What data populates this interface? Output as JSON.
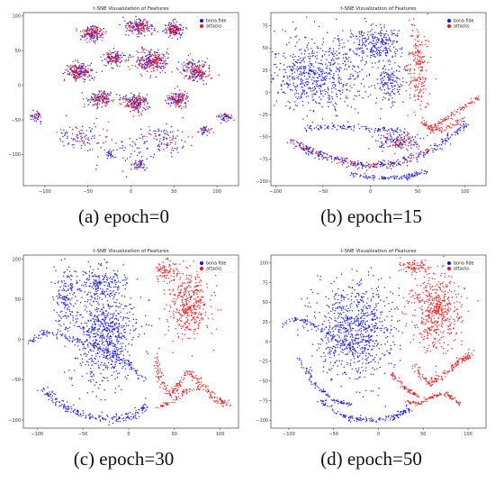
{
  "colors": {
    "bona_fide": "#1010ee",
    "attacks": "#ee1010"
  },
  "chart_data": [
    {
      "type": "scatter",
      "title": "t-SNE Visualization of Features",
      "caption": "(a) epoch=0",
      "xlim": [
        -125,
        125
      ],
      "ylim": [
        -145,
        105
      ],
      "xticks": [
        -100,
        -50,
        0,
        50,
        100
      ],
      "yticks": [
        -100,
        -50,
        0,
        50,
        100
      ],
      "legend": {
        "placement": "top-right",
        "entries": [
          "bona fide",
          "attacks"
        ]
      },
      "series": [
        {
          "name": "bona fide",
          "color": "#1010ee",
          "clusters": [
            {
              "cx": -45,
              "cy": 75,
              "rx": 12,
              "ry": 10,
              "n": 90
            },
            {
              "cx": 10,
              "cy": 85,
              "rx": 14,
              "ry": 10,
              "n": 100
            },
            {
              "cx": 50,
              "cy": 80,
              "rx": 10,
              "ry": 10,
              "n": 80
            },
            {
              "cx": -60,
              "cy": 20,
              "rx": 15,
              "ry": 12,
              "n": 110
            },
            {
              "cx": -20,
              "cy": 40,
              "rx": 10,
              "ry": 10,
              "n": 70
            },
            {
              "cx": 25,
              "cy": 35,
              "rx": 18,
              "ry": 14,
              "n": 140
            },
            {
              "cx": 75,
              "cy": 20,
              "rx": 15,
              "ry": 14,
              "n": 110
            },
            {
              "cx": -35,
              "cy": -20,
              "rx": 12,
              "ry": 10,
              "n": 80
            },
            {
              "cx": 5,
              "cy": -25,
              "rx": 14,
              "ry": 12,
              "n": 100
            },
            {
              "cx": 55,
              "cy": -20,
              "rx": 12,
              "ry": 10,
              "n": 80
            },
            {
              "cx": -110,
              "cy": -45,
              "rx": 7,
              "ry": 7,
              "n": 30
            },
            {
              "cx": 110,
              "cy": -45,
              "rx": 8,
              "ry": 7,
              "n": 35
            },
            {
              "cx": 85,
              "cy": -65,
              "rx": 8,
              "ry": 6,
              "n": 30
            },
            {
              "cx": 10,
              "cy": -115,
              "rx": 8,
              "ry": 7,
              "n": 35
            },
            {
              "cx": -25,
              "cy": -100,
              "rx": 6,
              "ry": 6,
              "n": 20
            },
            {
              "cx": -60,
              "cy": -75,
              "rx": 22,
              "ry": 18,
              "n": 60
            },
            {
              "cx": 40,
              "cy": -80,
              "rx": 25,
              "ry": 20,
              "n": 60
            },
            {
              "cx": 0,
              "cy": -90,
              "rx": 60,
              "ry": 30,
              "n": 80
            }
          ]
        },
        {
          "name": "attacks",
          "color": "#ee1010",
          "clusters": [
            {
              "cx": -45,
              "cy": 75,
              "rx": 12,
              "ry": 10,
              "n": 80
            },
            {
              "cx": 10,
              "cy": 85,
              "rx": 14,
              "ry": 10,
              "n": 90
            },
            {
              "cx": 50,
              "cy": 80,
              "rx": 10,
              "ry": 10,
              "n": 70
            },
            {
              "cx": -60,
              "cy": 20,
              "rx": 15,
              "ry": 12,
              "n": 100
            },
            {
              "cx": -20,
              "cy": 40,
              "rx": 10,
              "ry": 10,
              "n": 60
            },
            {
              "cx": 25,
              "cy": 35,
              "rx": 18,
              "ry": 14,
              "n": 130
            },
            {
              "cx": 75,
              "cy": 20,
              "rx": 15,
              "ry": 14,
              "n": 100
            },
            {
              "cx": -35,
              "cy": -20,
              "rx": 12,
              "ry": 10,
              "n": 70
            },
            {
              "cx": 5,
              "cy": -25,
              "rx": 14,
              "ry": 12,
              "n": 90
            },
            {
              "cx": 55,
              "cy": -20,
              "rx": 12,
              "ry": 10,
              "n": 70
            },
            {
              "cx": -110,
              "cy": -45,
              "rx": 7,
              "ry": 7,
              "n": 12
            },
            {
              "cx": 110,
              "cy": -45,
              "rx": 8,
              "ry": 7,
              "n": 14
            },
            {
              "cx": 85,
              "cy": -65,
              "rx": 8,
              "ry": 6,
              "n": 10
            },
            {
              "cx": 10,
              "cy": -115,
              "rx": 8,
              "ry": 7,
              "n": 12
            },
            {
              "cx": -60,
              "cy": -75,
              "rx": 22,
              "ry": 18,
              "n": 25
            },
            {
              "cx": 40,
              "cy": -80,
              "rx": 25,
              "ry": 20,
              "n": 25
            }
          ]
        }
      ]
    },
    {
      "type": "scatter",
      "title": "t-SNE Visualization of Features",
      "caption": "(b) epoch=15",
      "xlim": [
        -105,
        122
      ],
      "ylim": [
        -105,
        90
      ],
      "xticks": [
        -100,
        -50,
        0,
        50,
        100
      ],
      "yticks": [
        -100,
        -75,
        -50,
        -25,
        0,
        25,
        50,
        75
      ],
      "legend": {
        "placement": "top-right",
        "entries": [
          "bona fide",
          "attacks"
        ]
      },
      "series": [
        {
          "name": "bona fide",
          "color": "#1010ee",
          "clusters": [
            {
              "cx": -55,
              "cy": 20,
              "rx": 45,
              "ry": 40,
              "n": 650
            },
            {
              "cx": 5,
              "cy": 55,
              "rx": 25,
              "ry": 20,
              "n": 250
            },
            {
              "cx": 20,
              "cy": 10,
              "rx": 15,
              "ry": 25,
              "n": 150
            },
            {
              "cx": 30,
              "cy": -55,
              "rx": 20,
              "ry": 8,
              "n": 100
            }
          ],
          "arcs": [
            {
              "x": [
                -85,
                -50,
                -10,
                30,
                70,
                100
              ],
              "y": [
                -55,
                -72,
                -82,
                -80,
                -62,
                -35
              ],
              "w": 5,
              "n": 300
            },
            {
              "x": [
                -70,
                -35,
                5,
                40
              ],
              "y": [
                -40,
                -38,
                -42,
                -45
              ],
              "w": 4,
              "n": 120
            },
            {
              "x": [
                -20,
                10,
                40,
                60
              ],
              "y": [
                -92,
                -97,
                -95,
                -88
              ],
              "w": 3,
              "n": 110
            }
          ]
        },
        {
          "name": "attacks",
          "color": "#ee1010",
          "clusters": [
            {
              "cx": 50,
              "cy": 30,
              "rx": 10,
              "ry": 45,
              "n": 200
            },
            {
              "cx": 30,
              "cy": -55,
              "rx": 18,
              "ry": 8,
              "n": 60
            }
          ],
          "arcs": [
            {
              "x": [
                55,
                65,
                80,
                100,
                115
              ],
              "y": [
                -35,
                -40,
                -30,
                -15,
                -5
              ],
              "w": 3,
              "n": 110
            },
            {
              "x": [
                -85,
                -50,
                -10,
                30,
                70
              ],
              "y": [
                -55,
                -72,
                -82,
                -80,
                -62
              ],
              "w": 4,
              "n": 120
            },
            {
              "x": [
                60,
                80,
                100
              ],
              "y": [
                -45,
                -40,
                -30
              ],
              "w": 3,
              "n": 50
            }
          ]
        }
      ]
    },
    {
      "type": "scatter",
      "title": "t-SNE Visualization of Features",
      "caption": "(c) epoch=30",
      "xlim": [
        -115,
        120
      ],
      "ylim": [
        -110,
        105
      ],
      "xticks": [
        -100,
        -50,
        0,
        50,
        100
      ],
      "yticks": [
        -100,
        -50,
        0,
        50,
        100
      ],
      "legend": {
        "placement": "top-right",
        "entries": [
          "bona fide",
          "attacks"
        ]
      },
      "series": [
        {
          "name": "bona fide",
          "color": "#1010ee",
          "clusters": [
            {
              "cx": -25,
              "cy": 5,
              "rx": 30,
              "ry": 55,
              "n": 700
            },
            {
              "cx": -30,
              "cy": 70,
              "rx": 25,
              "ry": 20,
              "n": 200
            },
            {
              "cx": -70,
              "cy": 50,
              "rx": 12,
              "ry": 35,
              "n": 150
            }
          ],
          "arcs": [
            {
              "x": [
                -110,
                -90,
                -60,
                -30,
                0,
                15
              ],
              "y": [
                -5,
                10,
                0,
                -10,
                -30,
                -50
              ],
              "w": 4,
              "n": 150
            },
            {
              "x": [
                -95,
                -75,
                -50,
                -20,
                5,
                20
              ],
              "y": [
                -60,
                -80,
                -95,
                -100,
                -95,
                -80
              ],
              "w": 5,
              "n": 200
            }
          ]
        },
        {
          "name": "attacks",
          "color": "#ee1010",
          "clusters": [
            {
              "cx": 65,
              "cy": 45,
              "rx": 22,
              "ry": 40,
              "n": 400
            },
            {
              "cx": 40,
              "cy": 85,
              "rx": 12,
              "ry": 12,
              "n": 80
            }
          ],
          "arcs": [
            {
              "x": [
                30,
                35,
                45,
                55,
                65,
                80,
                95,
                110
              ],
              "y": [
                -20,
                -50,
                -70,
                -55,
                -40,
                -55,
                -75,
                -80
              ],
              "w": 4,
              "n": 200
            },
            {
              "x": [
                30,
                45,
                60,
                80
              ],
              "y": [
                -85,
                -80,
                -65,
                -60
              ],
              "w": 3,
              "n": 60
            }
          ]
        }
      ]
    },
    {
      "type": "scatter",
      "title": "t-SNE Visualization of Features",
      "caption": "(d) epoch=50",
      "xlim": [
        -120,
        120
      ],
      "ylim": [
        -110,
        110
      ],
      "xticks": [
        -100,
        -50,
        0,
        50,
        100
      ],
      "yticks": [
        -100,
        -75,
        -50,
        -25,
        0,
        25,
        50,
        75,
        100
      ],
      "legend": {
        "placement": "top-right",
        "entries": [
          "bona fide",
          "attacks"
        ]
      },
      "series": [
        {
          "name": "bona fide",
          "color": "#1010ee",
          "clusters": [
            {
              "cx": -25,
              "cy": 15,
              "rx": 40,
              "ry": 55,
              "n": 800
            }
          ],
          "arcs": [
            {
              "x": [
                -110,
                -90,
                -70,
                -45,
                -25
              ],
              "y": [
                20,
                30,
                20,
                0,
                -10
              ],
              "w": 3,
              "n": 90
            },
            {
              "x": [
                -90,
                -70,
                -50,
                -30
              ],
              "y": [
                -20,
                -55,
                -75,
                -80
              ],
              "w": 3,
              "n": 90
            },
            {
              "x": [
                -65,
                -40,
                -10,
                20,
                35
              ],
              "y": [
                -75,
                -95,
                -100,
                -95,
                -85
              ],
              "w": 4,
              "n": 150
            }
          ]
        },
        {
          "name": "attacks",
          "color": "#ee1010",
          "clusters": [
            {
              "cx": 65,
              "cy": 40,
              "rx": 25,
              "ry": 45,
              "n": 500
            },
            {
              "cx": 40,
              "cy": 95,
              "rx": 15,
              "ry": 8,
              "n": 80
            }
          ],
          "arcs": [
            {
              "x": [
                40,
                55,
                70,
                90,
                105
              ],
              "y": [
                -30,
                -55,
                -45,
                -25,
                -15
              ],
              "w": 4,
              "n": 150
            },
            {
              "x": [
                30,
                45,
                60,
                75,
                90
              ],
              "y": [
                -75,
                -80,
                -70,
                -65,
                -80
              ],
              "w": 3,
              "n": 100
            },
            {
              "x": [
                15,
                30,
                45
              ],
              "y": [
                -40,
                -60,
                -70
              ],
              "w": 3,
              "n": 60
            }
          ]
        }
      ]
    }
  ]
}
